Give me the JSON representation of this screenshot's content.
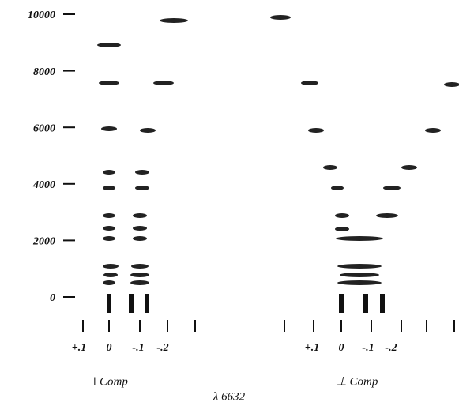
{
  "figure": {
    "ylim": [
      0,
      10000
    ],
    "yticks": [
      0,
      2000,
      4000,
      6000,
      8000,
      10000
    ],
    "panels": [
      {
        "scale_labels": [
          "+.1",
          "0",
          "-.1",
          "-.2"
        ],
        "caption": "‖ Comp"
      },
      {
        "scale_labels": [
          "+.1",
          "0",
          "-.1",
          "-.2"
        ],
        "caption": "⊥ Comp"
      }
    ],
    "wavelength": "λ 6632"
  }
}
